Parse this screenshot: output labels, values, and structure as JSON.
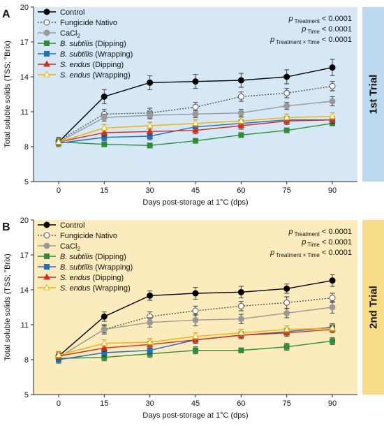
{
  "chart_data": [
    {
      "type": "line",
      "panel_label": "A",
      "trial_label": "1st Trial",
      "trial_bg": "#bcd9ef",
      "plot_bg": "#d6e8f6",
      "xlabel": "Days post-storage at 1°C (dps)",
      "ylabel": "Total soluble solids (TSS; °Brix)",
      "x": [
        0,
        15,
        30,
        45,
        60,
        75,
        90
      ],
      "x_ticks": [
        "0",
        "15",
        "30",
        "45",
        "60",
        "75",
        "90"
      ],
      "y_ticks": [
        "5",
        "8",
        "11",
        "14",
        "17",
        "20"
      ],
      "ylim": [
        5,
        20
      ],
      "grid": false,
      "legend_position": "top-left",
      "stats": [
        {
          "main": "p",
          "sub": "Treatment",
          "rest": " < 0.0001"
        },
        {
          "main": "p",
          "sub": "Time",
          "rest": " < 0.0001"
        },
        {
          "main": "p",
          "sub": "Treatment × Time",
          "rest": " < 0.0001"
        }
      ],
      "series": [
        {
          "label": "Control",
          "italic_part": "",
          "color": "#000000",
          "marker": "circle",
          "fill": "#000000",
          "dash": "",
          "values": [
            8.4,
            12.3,
            13.5,
            13.6,
            13.7,
            14.0,
            14.8
          ],
          "errors": [
            0.3,
            0.6,
            0.6,
            0.6,
            0.6,
            0.6,
            0.7
          ]
        },
        {
          "label": "Fungicide Nativo",
          "italic_part": "",
          "color": "#555555",
          "marker": "circle",
          "fill": "#ffffff",
          "dash": "2,2",
          "values": [
            8.5,
            10.8,
            10.9,
            11.4,
            12.3,
            12.6,
            13.2
          ],
          "errors": [
            0.3,
            0.4,
            0.4,
            0.4,
            0.4,
            0.4,
            0.4
          ]
        },
        {
          "label": "CaCl2",
          "italic_part": "",
          "color": "#999999",
          "marker": "circle",
          "fill": "#999999",
          "dash": "",
          "values": [
            8.4,
            10.5,
            10.7,
            10.8,
            10.9,
            11.5,
            11.9
          ],
          "errors": [
            0.3,
            0.3,
            0.3,
            0.3,
            0.3,
            0.3,
            0.4
          ]
        },
        {
          "label": " (Dipping)",
          "italic_part": "B. subtilis",
          "color": "#2e8b3a",
          "marker": "square",
          "fill": "#2e8b3a",
          "dash": "",
          "values": [
            8.4,
            8.2,
            8.1,
            8.5,
            9.0,
            9.4,
            10.0
          ],
          "errors": [
            0.3,
            0.2,
            0.2,
            0.2,
            0.2,
            0.2,
            0.2
          ]
        },
        {
          "label": " (Wrapping)",
          "italic_part": "B. subtilis",
          "color": "#1e6fc1",
          "marker": "square",
          "fill": "#1e6fc1",
          "dash": "",
          "values": [
            8.3,
            8.8,
            8.9,
            9.7,
            10.0,
            10.3,
            10.3
          ],
          "errors": [
            0.3,
            0.3,
            0.3,
            0.3,
            0.3,
            0.3,
            0.3
          ]
        },
        {
          "label": " (Dipping)",
          "italic_part": "S. endus",
          "color": "#d42b1e",
          "marker": "triangle",
          "fill": "#d42b1e",
          "dash": "",
          "values": [
            8.4,
            9.2,
            9.3,
            9.4,
            9.8,
            10.2,
            10.3
          ],
          "errors": [
            0.3,
            0.3,
            0.3,
            0.3,
            0.3,
            0.3,
            0.3
          ]
        },
        {
          "label": " (Wrapping)",
          "italic_part": "S. endus",
          "color": "#f2b100",
          "marker": "triangle",
          "fill": "#ffffff",
          "dash": "",
          "values": [
            8.4,
            9.6,
            9.8,
            10.0,
            10.2,
            10.5,
            10.6
          ],
          "errors": [
            0.3,
            0.3,
            0.3,
            0.3,
            0.3,
            0.3,
            0.3
          ]
        }
      ]
    },
    {
      "type": "line",
      "panel_label": "B",
      "trial_label": "2nd Trial",
      "trial_bg": "#f8dc87",
      "plot_bg": "#fbebbd",
      "xlabel": "Days post-storage at 1°C (dps)",
      "ylabel": "Total soluble solids (TSS; °Brix)",
      "x": [
        0,
        15,
        30,
        45,
        60,
        75,
        90
      ],
      "x_ticks": [
        "0",
        "15",
        "30",
        "45",
        "60",
        "75",
        "90"
      ],
      "y_ticks": [
        "5",
        "8",
        "11",
        "14",
        "17",
        "20"
      ],
      "ylim": [
        5,
        20
      ],
      "grid": false,
      "legend_position": "top-left",
      "stats": [
        {
          "main": "p",
          "sub": "Treatment",
          "rest": " < 0.0001"
        },
        {
          "main": "p",
          "sub": "Time",
          "rest": " < 0.0001"
        },
        {
          "main": "p",
          "sub": "Treatment × Time",
          "rest": " < 0.0001"
        }
      ],
      "series": [
        {
          "label": "Control",
          "italic_part": "",
          "color": "#000000",
          "marker": "circle",
          "fill": "#000000",
          "dash": "",
          "values": [
            8.3,
            11.7,
            13.5,
            13.7,
            13.8,
            14.1,
            14.8
          ],
          "errors": [
            0.4,
            0.4,
            0.4,
            0.5,
            0.5,
            0.4,
            0.5
          ]
        },
        {
          "label": "Fungicide Nativo",
          "italic_part": "",
          "color": "#555555",
          "marker": "circle",
          "fill": "#ffffff",
          "dash": "2,2",
          "values": [
            8.2,
            10.6,
            11.7,
            12.2,
            12.6,
            12.9,
            13.3
          ],
          "errors": [
            0.4,
            0.4,
            0.4,
            0.4,
            0.4,
            0.5,
            0.4
          ]
        },
        {
          "label": "CaCl2",
          "italic_part": "",
          "color": "#999999",
          "marker": "circle",
          "fill": "#999999",
          "dash": "",
          "values": [
            8.2,
            10.6,
            11.2,
            11.4,
            11.5,
            12.0,
            12.5
          ],
          "errors": [
            0.3,
            0.3,
            0.4,
            0.5,
            0.4,
            0.4,
            0.5
          ]
        },
        {
          "label": " (Dipping)",
          "italic_part": "B. subtilis",
          "color": "#2e8b3a",
          "marker": "square",
          "fill": "#2e8b3a",
          "dash": "",
          "values": [
            8.1,
            8.2,
            8.5,
            8.8,
            8.8,
            9.1,
            9.6
          ],
          "errors": [
            0.3,
            0.3,
            0.3,
            0.3,
            0.2,
            0.3,
            0.3
          ]
        },
        {
          "label": " (Wrapping)",
          "italic_part": "B. subtilis",
          "color": "#1e6fc1",
          "marker": "square",
          "fill": "#1e6fc1",
          "dash": "",
          "values": [
            8.0,
            8.6,
            8.8,
            9.7,
            10.1,
            10.4,
            10.8
          ],
          "errors": [
            0.3,
            0.3,
            0.3,
            0.3,
            0.3,
            0.3,
            0.3
          ]
        },
        {
          "label": " (Dipping)",
          "italic_part": "S. endus",
          "color": "#d42b1e",
          "marker": "triangle",
          "fill": "#d42b1e",
          "dash": "",
          "values": [
            8.3,
            9.0,
            9.3,
            9.7,
            10.1,
            10.3,
            10.6
          ],
          "errors": [
            0.3,
            0.3,
            0.3,
            0.3,
            0.3,
            0.3,
            0.3
          ]
        },
        {
          "label": " (Wrapping)",
          "italic_part": "S. endus",
          "color": "#f2b100",
          "marker": "triangle",
          "fill": "#ffffff",
          "dash": "",
          "values": [
            8.4,
            9.4,
            9.5,
            10.0,
            10.3,
            10.6,
            10.7
          ],
          "errors": [
            0.3,
            0.3,
            0.3,
            0.3,
            0.3,
            0.3,
            0.3
          ]
        }
      ]
    }
  ]
}
